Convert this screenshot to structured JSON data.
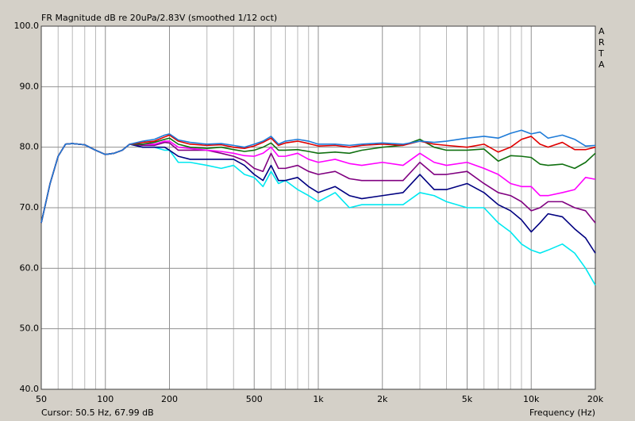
{
  "chart_data": {
    "type": "line",
    "title": "FR Magnitude dB re 20uPa/2.83V (smoothed 1/12 oct)",
    "annotation": "ARTA",
    "cursor_text": "Cursor: 50.5 Hz, 67.99 dB",
    "x_label": "Frequency (Hz)",
    "x_log": true,
    "grid": true,
    "xlim": [
      50,
      20000
    ],
    "xticks": [
      50,
      100,
      200,
      500,
      {
        "value": 1000,
        "label": "1k"
      },
      {
        "value": 2000,
        "label": "2k"
      },
      {
        "value": 5000,
        "label": "5k"
      },
      {
        "value": 10000,
        "label": "10k"
      },
      {
        "value": 20000,
        "label": "20k"
      }
    ],
    "xminor_ticks": [
      60,
      70,
      80,
      90,
      300,
      400,
      600,
      700,
      800,
      900,
      3000,
      4000,
      6000,
      7000,
      8000,
      9000
    ],
    "ylim": [
      40,
      100
    ],
    "yticks": [
      {
        "value": 40,
        "label": "40.0"
      },
      {
        "value": 50,
        "label": "50.0"
      },
      {
        "value": 60,
        "label": "60.0"
      },
      {
        "value": 70,
        "label": "70.0"
      },
      {
        "value": 80,
        "label": "80.0"
      },
      {
        "value": 90,
        "label": "90.0"
      },
      {
        "value": 100,
        "label": "100.0"
      }
    ],
    "x": [
      50,
      55,
      60,
      65,
      70,
      80,
      90,
      100,
      110,
      120,
      130,
      150,
      170,
      190,
      200,
      220,
      250,
      300,
      350,
      400,
      450,
      500,
      550,
      600,
      650,
      700,
      800,
      900,
      1000,
      1200,
      1400,
      1600,
      2000,
      2500,
      3000,
      3500,
      4000,
      5000,
      6000,
      7000,
      8000,
      9000,
      10000,
      11000,
      12000,
      14000,
      16000,
      18000,
      20000
    ],
    "series": [
      {
        "color": "#1e7bd8",
        "values": [
          67.5,
          74,
          78.5,
          80.5,
          80.6,
          80.4,
          79.5,
          78.8,
          79,
          79.5,
          80.5,
          81,
          81.3,
          82,
          82.2,
          81.2,
          80.8,
          80.5,
          80.6,
          80.3,
          80,
          80.5,
          81,
          81.8,
          80.5,
          81,
          81.3,
          81,
          80.5,
          80.5,
          80.3,
          80.5,
          80.7,
          80.5,
          81,
          80.8,
          81,
          81.5,
          81.8,
          81.5,
          82.3,
          82.8,
          82.2,
          82.5,
          81.5,
          82,
          81.3,
          80.2,
          80.3
        ]
      },
      {
        "color": "#e00000",
        "values": [
          67.5,
          74,
          78.5,
          80.5,
          80.6,
          80.4,
          79.5,
          78.8,
          79,
          79.5,
          80.5,
          80.8,
          81,
          81.7,
          82,
          81,
          80.5,
          80.3,
          80.4,
          80,
          79.8,
          80.2,
          80.8,
          81.5,
          80.3,
          80.7,
          81,
          80.6,
          80.2,
          80.3,
          80,
          80.3,
          80.5,
          80.3,
          81,
          80.5,
          80.3,
          80,
          80.5,
          79.2,
          80,
          81.3,
          81.8,
          80.5,
          80,
          80.8,
          79.6,
          79.6,
          80
        ]
      },
      {
        "color": "#107010",
        "values": [
          67.5,
          74,
          78.5,
          80.5,
          80.6,
          80.4,
          79.5,
          78.8,
          79,
          79.5,
          80.5,
          80.5,
          80.8,
          81.3,
          81.5,
          80.5,
          80,
          79.8,
          80,
          79.6,
          79.3,
          79.5,
          80,
          80.7,
          79.5,
          79.5,
          79.6,
          79.3,
          79,
          79.2,
          79,
          79.5,
          80,
          80.3,
          81.3,
          80,
          79.5,
          79.5,
          79.7,
          77.7,
          78.6,
          78.5,
          78.3,
          77.2,
          77,
          77.2,
          76.5,
          77.5,
          79
        ]
      },
      {
        "color": "#ff00ff",
        "values": [
          67.5,
          74,
          78.5,
          80.5,
          80.6,
          80.4,
          79.5,
          78.8,
          79,
          79.5,
          80.5,
          80.5,
          80.5,
          81,
          81,
          80,
          79.8,
          79.5,
          79.3,
          79,
          78.6,
          78.5,
          79,
          80,
          78.5,
          78.5,
          79,
          78,
          77.5,
          78,
          77.3,
          77,
          77.5,
          77,
          79,
          77.5,
          77,
          77.5,
          76.5,
          75.5,
          74,
          73.5,
          73.5,
          72,
          72,
          72.5,
          73,
          75,
          74.7
        ]
      },
      {
        "color": "#800080",
        "values": [
          67.5,
          74,
          78.5,
          80.5,
          80.6,
          80.4,
          79.5,
          78.8,
          79,
          79.5,
          80.5,
          80.3,
          80.3,
          80.8,
          80.7,
          79.5,
          79.5,
          79.5,
          79,
          78.5,
          77.8,
          76.5,
          76,
          79,
          76.5,
          76.5,
          77,
          76,
          75.5,
          76,
          74.8,
          74.5,
          74.5,
          74.5,
          77.5,
          75.5,
          75.5,
          76,
          74,
          72.5,
          72,
          71,
          69.5,
          70,
          71,
          71,
          70,
          69.5,
          67.5
        ]
      },
      {
        "color": "#000080",
        "values": [
          67.5,
          74,
          78.5,
          80.5,
          80.6,
          80.4,
          79.5,
          78.8,
          79,
          79.5,
          80.5,
          80,
          80,
          80,
          79.5,
          78.5,
          78,
          78,
          78,
          78,
          77,
          75.5,
          74.5,
          77,
          74.5,
          74.5,
          75,
          73.5,
          72.5,
          73.5,
          72,
          71.5,
          72,
          72.5,
          75.5,
          73,
          73,
          74,
          72.5,
          70.5,
          69.5,
          68,
          66,
          67.5,
          69,
          68.5,
          66.5,
          65,
          62.5
        ]
      },
      {
        "color": "#00e8f0",
        "values": [
          67.5,
          74,
          78.5,
          80.5,
          80.6,
          80.4,
          79.5,
          78.8,
          79,
          79.5,
          80.5,
          80,
          80,
          79.5,
          79.5,
          77.5,
          77.5,
          77,
          76.5,
          77,
          75.5,
          75,
          73.5,
          76,
          74,
          74.5,
          73,
          72,
          71,
          72.5,
          70,
          70.5,
          70.5,
          70.5,
          72.5,
          72,
          71,
          70,
          70,
          67.5,
          66,
          64,
          63,
          62.5,
          63,
          64,
          62.5,
          60,
          57.2
        ]
      }
    ]
  }
}
